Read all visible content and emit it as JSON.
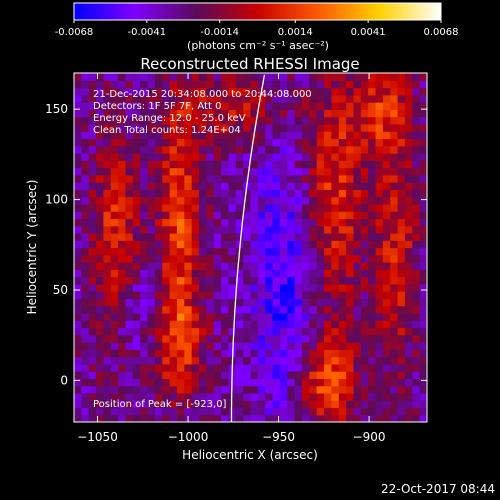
{
  "chart_data": {
    "type": "heatmap",
    "title": "Reconstructed RHESSI Image",
    "xlabel": "Heliocentric X (arcsec)",
    "ylabel": "Heliocentric Y (arcsec)",
    "xlim": [
      -1063,
      -868
    ],
    "ylim": [
      -23,
      170
    ],
    "xticks": [
      -1050,
      -1000,
      -950,
      -900
    ],
    "yticks": [
      0,
      50,
      100,
      150
    ],
    "colorbar": {
      "min": -0.0068,
      "max": 0.0068,
      "ticks": [
        "-0.0068",
        "-0.0041",
        "-0.0014",
        "0.0014",
        "0.0041",
        "0.0068"
      ],
      "label": "(photons cm⁻² s⁻¹ asec⁻²)",
      "colors": [
        "#0000ff",
        "#8000ff",
        "#5a0a5a",
        "#c80000",
        "#ff5a00",
        "#ffd200",
        "#ffffff"
      ]
    },
    "annotations": [
      "21-Dec-2015 20:34:08.000 to 20:44:08.000",
      "Detectors: 1F 5F 7F, Att 0",
      "Energy Range: 12.0 - 25.0 keV",
      "Clean    Total counts: 1.24E+04"
    ],
    "peak_label": "Position of Peak = [-923,0]",
    "peak": [
      -923,
      0
    ],
    "grid": false,
    "limb_color": "#ffffff"
  },
  "footer": {
    "timestamp": "22-Oct-2017 08:44"
  }
}
